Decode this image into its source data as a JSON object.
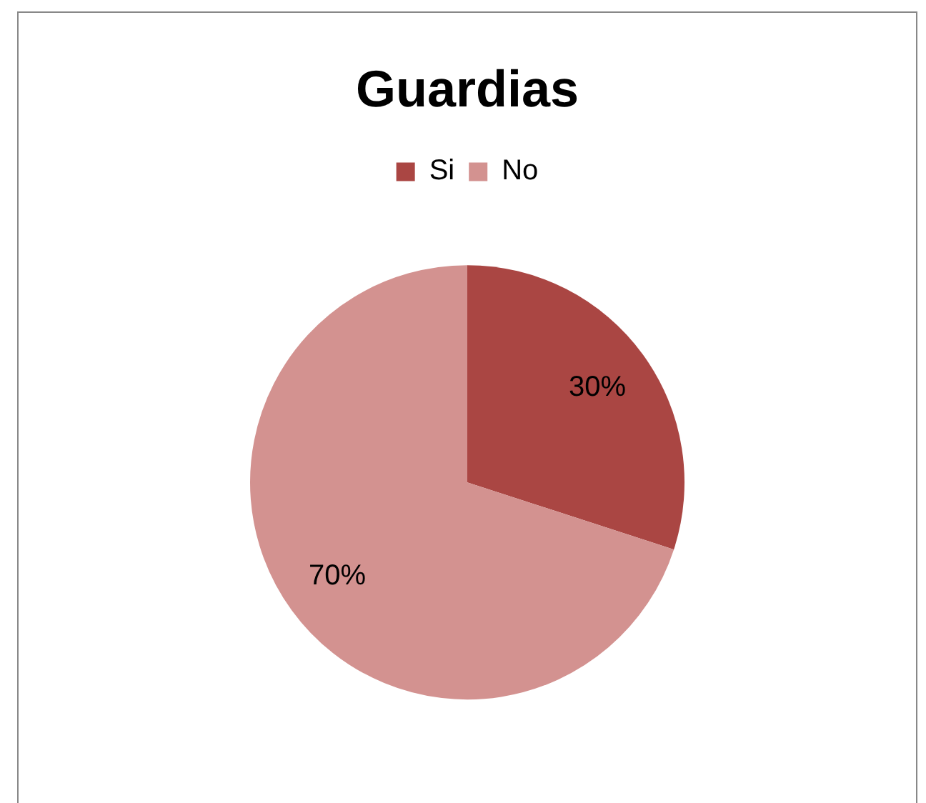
{
  "chart_data": {
    "type": "pie",
    "title": "Guardias",
    "categories": [
      "Si",
      "No"
    ],
    "values": [
      30,
      70
    ],
    "colors": [
      "#aa4643",
      "#d39290"
    ],
    "value_labels": [
      "30%",
      "70%"
    ],
    "legend": "top"
  }
}
